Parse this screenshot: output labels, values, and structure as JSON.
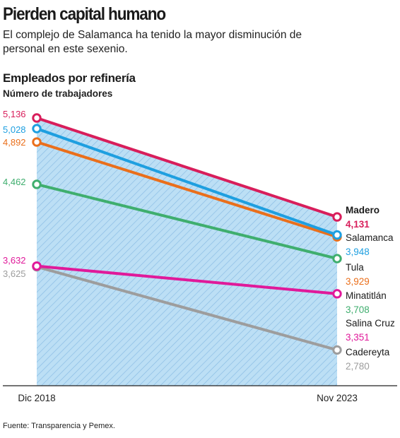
{
  "header": {
    "title": "Pierden capital humano",
    "subtitle": "El complejo de Salamanca ha tenido la mayor disminución de personal en este sexenio."
  },
  "chart_data": {
    "type": "line",
    "title": "Empleados por refinería",
    "ylabel": "Número de trabajadores",
    "x": [
      "Dic 2018",
      "Nov 2023"
    ],
    "series": [
      {
        "name": "Madero",
        "values": [
          5136,
          4131
        ],
        "labels": [
          "5,136",
          "4,131"
        ],
        "color": "#d81e5b"
      },
      {
        "name": "Salamanca",
        "values": [
          5028,
          3948
        ],
        "labels": [
          "5,028",
          "3,948"
        ],
        "color": "#1e9fe0"
      },
      {
        "name": "Tula",
        "values": [
          4892,
          3929
        ],
        "labels": [
          "4,892",
          "3,929"
        ],
        "color": "#ea6f1b"
      },
      {
        "name": "Minatitlán",
        "values": [
          4462,
          3708
        ],
        "labels": [
          "4,462",
          "3,708"
        ],
        "color": "#3fae6e"
      },
      {
        "name": "Salina Cruz",
        "values": [
          3632,
          3351
        ],
        "labels": [
          "3,632",
          "3,351"
        ],
        "color": "#e0199a"
      },
      {
        "name": "Cadereyta",
        "values": [
          3625,
          2780
        ],
        "labels": [
          "3,625",
          "2,780"
        ],
        "color": "#9d9d9d"
      }
    ],
    "area_fill": "#bcdff5",
    "area_hatch": "#8bbde4"
  },
  "footer": {
    "source": "Fuente: Transparencia y Pemex."
  }
}
